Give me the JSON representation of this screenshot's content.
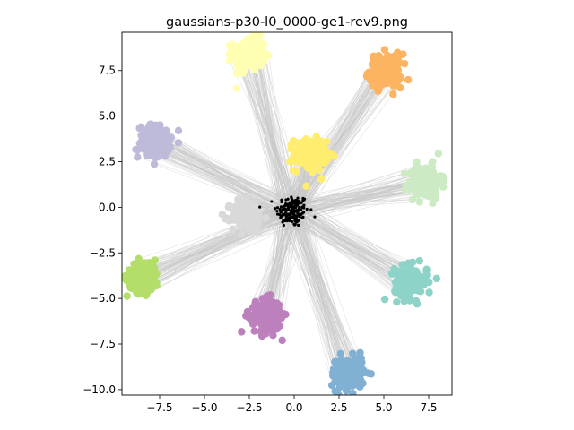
{
  "chart_data": {
    "type": "scatter",
    "title": "gaussians-p30-l0_0000-ge1-rev9.png",
    "xlabel": "",
    "ylabel": "",
    "xlim": [
      -9.6,
      8.8
    ],
    "ylim": [
      -10.3,
      9.6
    ],
    "x_ticks": [
      {
        "value": -7.5,
        "label": "−7.5"
      },
      {
        "value": -5.0,
        "label": "−5.0"
      },
      {
        "value": -2.5,
        "label": "−2.5"
      },
      {
        "value": 0.0,
        "label": "0.0"
      },
      {
        "value": 2.5,
        "label": "2.5"
      },
      {
        "value": 5.0,
        "label": "5.0"
      },
      {
        "value": 7.5,
        "label": "7.5"
      }
    ],
    "y_ticks": [
      {
        "value": -10.0,
        "label": "−10.0"
      },
      {
        "value": -7.5,
        "label": "−7.5"
      },
      {
        "value": -5.0,
        "label": "−5.0"
      },
      {
        "value": -2.5,
        "label": "−2.5"
      },
      {
        "value": 0.0,
        "label": "0.0"
      },
      {
        "value": 2.5,
        "label": "2.5"
      },
      {
        "value": 5.0,
        "label": "5.0"
      },
      {
        "value": 7.5,
        "label": "7.5"
      }
    ],
    "grid": false,
    "legend": "none",
    "line_color": "#c8c8c8",
    "source_points": {
      "center": [
        -0.1,
        -0.2
      ],
      "spread": 0.45,
      "count": 160,
      "color": "#000000"
    },
    "clusters": [
      {
        "center": [
          -2.5,
          8.4
        ],
        "spread": 0.45,
        "color": "#ffffb3"
      },
      {
        "center": [
          5.1,
          7.5
        ],
        "spread": 0.45,
        "color": "#fdb462"
      },
      {
        "center": [
          -7.8,
          3.6
        ],
        "spread": 0.45,
        "color": "#bebada"
      },
      {
        "center": [
          0.9,
          2.9
        ],
        "spread": 0.45,
        "color": "#ffed6f"
      },
      {
        "center": [
          7.3,
          1.4
        ],
        "spread": 0.45,
        "color": "#ccebc5"
      },
      {
        "center": [
          -2.6,
          -0.5
        ],
        "spread": 0.45,
        "color": "#d9d9d9"
      },
      {
        "center": [
          -8.4,
          -3.8
        ],
        "spread": 0.45,
        "color": "#b3de69"
      },
      {
        "center": [
          6.5,
          -4.1
        ],
        "spread": 0.45,
        "color": "#8dd3c7"
      },
      {
        "center": [
          -1.6,
          -6.0
        ],
        "spread": 0.45,
        "color": "#bc80bd"
      },
      {
        "center": [
          3.0,
          -9.1
        ],
        "spread": 0.45,
        "color": "#80b1d3"
      }
    ]
  }
}
